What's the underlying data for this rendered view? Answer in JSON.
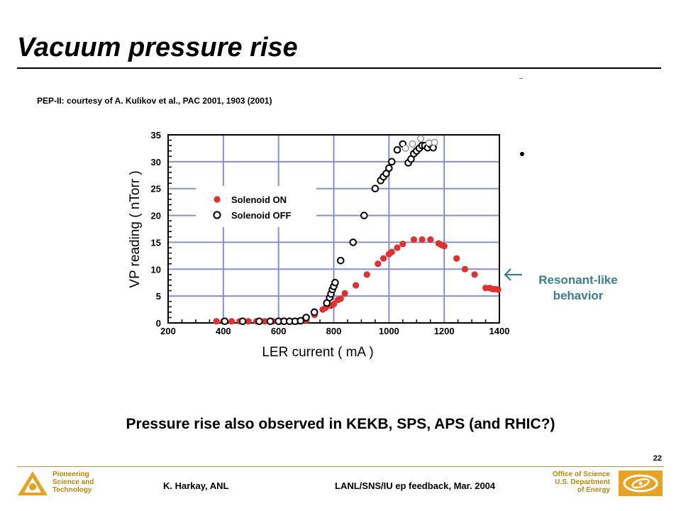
{
  "slide": {
    "title": "Vacuum pressure rise",
    "citation": "PEP-II: courtesy  of  A.  Kulikov et al., PAC 2001, 1903 (2001)",
    "annotation_line1": "Resonant-like",
    "annotation_line2": "behavior",
    "footnote": "Pressure rise also observed in KEKB, SPS, APS (and RHIC?)",
    "page_number": "22"
  },
  "footer": {
    "org_line1": "Pioneering",
    "org_line2": "Science and",
    "org_line3": "Technology",
    "author": "K. Harkay, ANL",
    "event": "LANL/SNS/IU ep feedback, Mar. 2004",
    "office_line1": "Office of Science",
    "office_line2": "U.S. Department",
    "office_line3": "of Energy"
  },
  "colors": {
    "on_series": "#e03030",
    "off_series": "#000000",
    "grid": "#8a8fc8",
    "annotation": "#3a7d8c",
    "footer_gold": "#b8860b"
  },
  "chart_data": {
    "type": "scatter",
    "xlabel": "LER  current  ( mA )",
    "ylabel": "VP reading ( nTorr )",
    "xlim": [
      200,
      1400
    ],
    "ylim": [
      0,
      35
    ],
    "xticks": [
      200,
      400,
      600,
      800,
      1000,
      1200,
      1400
    ],
    "yticks": [
      0,
      5,
      10,
      15,
      20,
      25,
      30,
      35
    ],
    "grid": true,
    "legend": "upper-left",
    "series": [
      {
        "name": "Solenoid  ON",
        "marker": "filled-circle",
        "points": [
          [
            375,
            0.3
          ],
          [
            400,
            0.3
          ],
          [
            430,
            0.3
          ],
          [
            460,
            0.3
          ],
          [
            490,
            0.3
          ],
          [
            520,
            0.3
          ],
          [
            550,
            0.3
          ],
          [
            580,
            0.3
          ],
          [
            610,
            0.3
          ],
          [
            640,
            0.3
          ],
          [
            670,
            0.3
          ],
          [
            700,
            0.5
          ],
          [
            730,
            1.5
          ],
          [
            760,
            2.5
          ],
          [
            770,
            2.8
          ],
          [
            790,
            3.2
          ],
          [
            800,
            3.5
          ],
          [
            815,
            4.3
          ],
          [
            825,
            4.5
          ],
          [
            840,
            5.5
          ],
          [
            880,
            7
          ],
          [
            920,
            9
          ],
          [
            960,
            11
          ],
          [
            980,
            12
          ],
          [
            1000,
            12.8
          ],
          [
            1010,
            13.2
          ],
          [
            1030,
            14
          ],
          [
            1050,
            14.7
          ],
          [
            1090,
            15.5
          ],
          [
            1120,
            15.5
          ],
          [
            1150,
            15.5
          ],
          [
            1180,
            14.8
          ],
          [
            1190,
            14.5
          ],
          [
            1200,
            14.3
          ],
          [
            1245,
            12
          ],
          [
            1275,
            10
          ],
          [
            1310,
            9
          ],
          [
            1350,
            6.5
          ],
          [
            1365,
            6.5
          ],
          [
            1375,
            6.3
          ],
          [
            1385,
            6.3
          ],
          [
            1395,
            6.2
          ]
        ]
      },
      {
        "name": "Solenoid  OFF",
        "marker": "open-circle",
        "points": [
          [
            405,
            0.3
          ],
          [
            470,
            0.3
          ],
          [
            530,
            0.3
          ],
          [
            570,
            0.3
          ],
          [
            600,
            0.3
          ],
          [
            620,
            0.3
          ],
          [
            640,
            0.3
          ],
          [
            660,
            0.3
          ],
          [
            680,
            0.4
          ],
          [
            700,
            1
          ],
          [
            730,
            2
          ],
          [
            775,
            3.7
          ],
          [
            785,
            4.7
          ],
          [
            790,
            5.4
          ],
          [
            795,
            6.2
          ],
          [
            800,
            6.8
          ],
          [
            805,
            7.5
          ],
          [
            825,
            11.6
          ],
          [
            870,
            15
          ],
          [
            910,
            20
          ],
          [
            950,
            25
          ],
          [
            970,
            26.5
          ],
          [
            980,
            27.2
          ],
          [
            990,
            27.8
          ],
          [
            1000,
            28.8
          ],
          [
            1010,
            30
          ],
          [
            1030,
            32.2
          ],
          [
            1050,
            33.3
          ],
          [
            1070,
            29.8
          ],
          [
            1080,
            30.5
          ],
          [
            1090,
            31.5
          ],
          [
            1100,
            32
          ],
          [
            1110,
            32.5
          ],
          [
            1120,
            33
          ],
          [
            1130,
            33
          ],
          [
            1140,
            32.6
          ],
          [
            1150,
            33.2
          ],
          [
            1160,
            32.6
          ]
        ]
      },
      {
        "name": "",
        "marker": "open-circle-light",
        "points": [
          [
            1060,
            32.5
          ],
          [
            1085,
            33.3
          ],
          [
            1115,
            34.3
          ],
          [
            1145,
            33.5
          ],
          [
            1165,
            33.6
          ]
        ]
      }
    ]
  }
}
